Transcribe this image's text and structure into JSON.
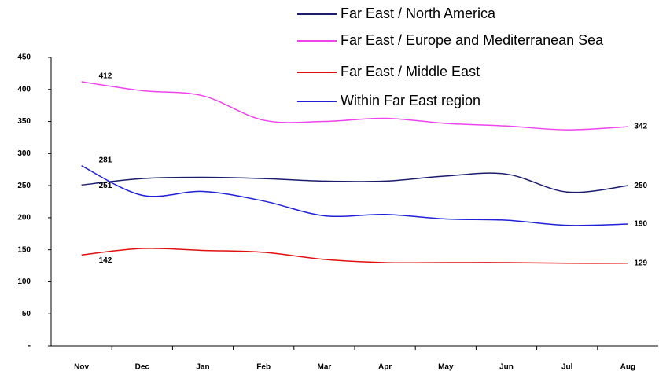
{
  "chart_data": {
    "type": "line",
    "categories": [
      "Nov",
      "Dec",
      "Jan",
      "Feb",
      "Mar",
      "Apr",
      "May",
      "Jun",
      "Jul",
      "Aug"
    ],
    "series": [
      {
        "name": "Far East / North America",
        "color": "#1c1c6e",
        "values": [
          251,
          261,
          263,
          261,
          257,
          257,
          265,
          268,
          240,
          250
        ]
      },
      {
        "name": "Far East / Europe and Mediterranean Sea",
        "color": "#ee44ee",
        "values": [
          412,
          398,
          390,
          352,
          350,
          355,
          347,
          343,
          337,
          342
        ]
      },
      {
        "name": "Far East / Middle East",
        "color": "#e01010",
        "values": [
          142,
          152,
          149,
          146,
          135,
          130,
          130,
          130,
          129,
          129
        ]
      },
      {
        "name": "Within Far East region",
        "color": "#2020d8",
        "values": [
          281,
          235,
          241,
          226,
          203,
          205,
          198,
          196,
          188,
          190
        ]
      }
    ],
    "ylim": [
      0,
      450
    ],
    "yticks": [
      {
        "value": 0,
        "label": "-"
      },
      50,
      100,
      150,
      200,
      250,
      300,
      350,
      400,
      450
    ],
    "data_labels": "ends",
    "grid": false
  }
}
